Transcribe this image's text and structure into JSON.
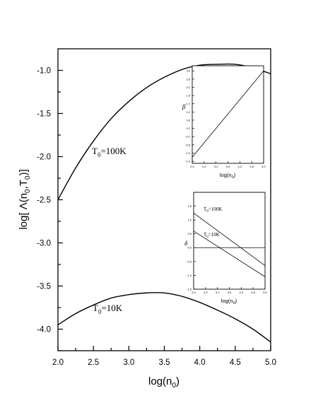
{
  "chart_data": [
    {
      "type": "line",
      "xlabel": "log(n",
      "xlabel_sub": "0",
      "xlabel_close": ")",
      "ylabel": "log[ Λ(n",
      "ylabel_sub": "0",
      "ylabel_mid": ",T",
      "ylabel_sub2": "0",
      "ylabel_close": ")]",
      "xlim": [
        2.0,
        5.0
      ],
      "ylim": [
        -4.25,
        -0.75
      ],
      "x_ticks": [
        "2.0",
        "2.5",
        "3.0",
        "3.5",
        "4.0",
        "4.5",
        "5.0"
      ],
      "y_ticks": [
        "-1.0",
        "-1.5",
        "-2.0",
        "-2.5",
        "-3.0",
        "-3.5",
        "-4.0"
      ],
      "grid": false,
      "series": [
        {
          "name_main": "T",
          "name_sub": "0",
          "name_rest": "=100K",
          "x": [
            2.0,
            2.25,
            2.5,
            2.75,
            3.0,
            3.25,
            3.5,
            3.75,
            4.0,
            4.25,
            4.5,
            4.75,
            5.0
          ],
          "y": [
            -2.5,
            -2.13,
            -1.82,
            -1.56,
            -1.36,
            -1.2,
            -1.08,
            -0.99,
            -0.94,
            -0.93,
            -0.93,
            -0.97,
            -1.04
          ]
        },
        {
          "name_main": "T",
          "name_sub": "0",
          "name_rest": "=10K",
          "x": [
            2.0,
            2.25,
            2.5,
            2.75,
            3.0,
            3.25,
            3.5,
            3.75,
            4.0,
            4.25,
            4.5,
            4.75,
            5.0
          ],
          "y": [
            -3.95,
            -3.82,
            -3.72,
            -3.64,
            -3.6,
            -3.58,
            -3.58,
            -3.62,
            -3.69,
            -3.78,
            -3.88,
            -4.0,
            -4.15
          ]
        }
      ]
    },
    {
      "type": "line",
      "ylabel": "β",
      "xlabel": "log(n",
      "xlabel_sub": "0",
      "xlabel_close": ")",
      "xlim": [
        2.0,
        5.0
      ],
      "ylim": [
        -1.5,
        3.25
      ],
      "x_ticks": [
        "2.0",
        "2.5",
        "3.0",
        "3.5",
        "4.0",
        "4.5",
        "5.0"
      ],
      "y_ticks": [
        "3.0",
        "2.6",
        "2.2",
        "1.8",
        "1.4",
        "1.0",
        "0.6",
        "0.2",
        "-0.2",
        "-0.6",
        "-1.0",
        "-1.4"
      ],
      "series": [
        {
          "x": [
            2.0,
            5.0
          ],
          "y": [
            -1.2,
            3.0
          ]
        }
      ]
    },
    {
      "type": "line",
      "ylabel": "δ",
      "xlabel": "log(n",
      "xlabel_sub": "0",
      "xlabel_close": ")",
      "xlim": [
        2.0,
        5.0
      ],
      "ylim": [
        -1.5,
        2.0
      ],
      "x_ticks": [
        "2.0",
        "2.5",
        "3.0",
        "3.5",
        "4.0",
        "4.5",
        "5.0"
      ],
      "y_ticks": [
        "1.5",
        "1.0",
        "0.5",
        "0.0",
        "-0.5",
        "-1.0",
        "-1.5"
      ],
      "series": [
        {
          "name_main": "T",
          "name_sub": "0",
          "name_rest": "=100K",
          "x": [
            2.0,
            5.0
          ],
          "y": [
            1.25,
            -0.65
          ]
        },
        {
          "name_main": "T",
          "name_sub": "0",
          "name_rest": "=10K",
          "x": [
            2.0,
            5.0
          ],
          "y": [
            0.6,
            -1.05
          ]
        },
        {
          "x": [
            2.0,
            5.0
          ],
          "y": [
            0.0,
            0.0
          ]
        }
      ]
    }
  ]
}
